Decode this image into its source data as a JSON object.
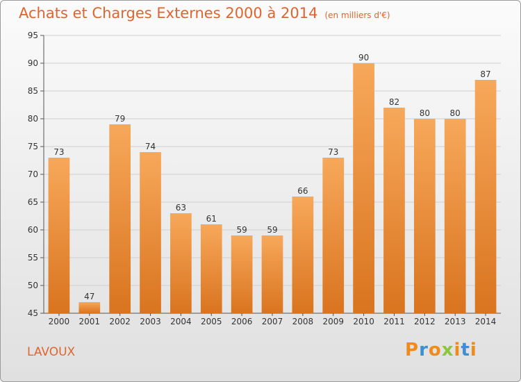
{
  "chart_data": {
    "type": "bar",
    "title": "Achats et Charges Externes 2000 à 2014",
    "subtitle": "(en milliers d'€)",
    "categories": [
      "2000",
      "2001",
      "2002",
      "2003",
      "2004",
      "2005",
      "2006",
      "2007",
      "2008",
      "2009",
      "2010",
      "2011",
      "2012",
      "2013",
      "2014"
    ],
    "values": [
      73,
      47,
      79,
      74,
      63,
      61,
      59,
      59,
      66,
      73,
      90,
      82,
      80,
      80,
      87
    ],
    "ylim": [
      45,
      95
    ],
    "yticks": [
      45,
      50,
      55,
      60,
      65,
      70,
      75,
      80,
      85,
      90,
      95
    ],
    "grid": true,
    "bar_color_top": "#f7a85a",
    "bar_color_bottom": "#d9741f"
  },
  "footer": {
    "place": "LAVOUX",
    "brand": "Proxiti"
  },
  "colors": {
    "title": "#e0642d",
    "brand_letters": [
      "#f08a1c",
      "#3e8fd0",
      "#f08a1c",
      "#8cc63f",
      "#f08a1c",
      "#3e8fd0",
      "#f08a1c"
    ]
  }
}
